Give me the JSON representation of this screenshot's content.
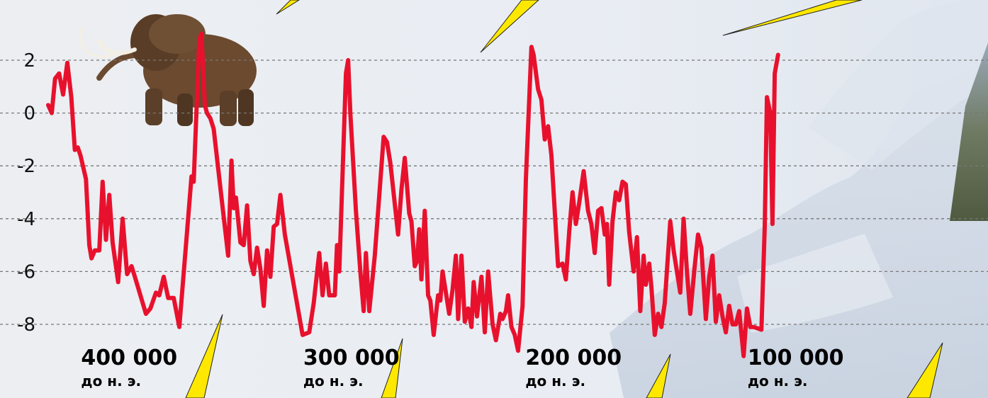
{
  "chart_data": {
    "type": "line",
    "title": "",
    "xlabel": "",
    "ylabel": "",
    "xlim": [
      418000,
      -5000
    ],
    "ylim": [
      -9.3,
      3.5
    ],
    "grid": true,
    "yticks": [
      2,
      0,
      -2,
      -4,
      -6,
      -8
    ],
    "ytick_labels": [
      "2",
      "0",
      "-2",
      "-4",
      "-6",
      "-8"
    ],
    "x_annotations": [
      {
        "value": 400000,
        "label": "400 000",
        "sub": "до н. э."
      },
      {
        "value": 300000,
        "label": "300 000",
        "sub": "до н. э."
      },
      {
        "value": 200000,
        "label": "200 000",
        "sub": "до н. э."
      },
      {
        "value": 100000,
        "label": "100 000",
        "sub": "до н. э."
      }
    ],
    "colors": {
      "line": "#e8112d",
      "grid": "#777777",
      "callout": "#ffe800"
    },
    "series": [
      {
        "name": "",
        "points": [
          [
            418000,
            0.3
          ],
          [
            416400,
            0.0
          ],
          [
            414900,
            1.3
          ],
          [
            413100,
            1.5
          ],
          [
            411300,
            0.7
          ],
          [
            409400,
            1.9
          ],
          [
            407600,
            0.6
          ],
          [
            406000,
            -1.4
          ],
          [
            404700,
            -1.3
          ],
          [
            403500,
            -1.6
          ],
          [
            401000,
            -2.5
          ],
          [
            399500,
            -5.0
          ],
          [
            398500,
            -5.5
          ],
          [
            397000,
            -5.2
          ],
          [
            395000,
            -5.2
          ],
          [
            393500,
            -2.6
          ],
          [
            392000,
            -4.8
          ],
          [
            390500,
            -3.1
          ],
          [
            389000,
            -4.9
          ],
          [
            386500,
            -6.4
          ],
          [
            384500,
            -4.0
          ],
          [
            382500,
            -6.1
          ],
          [
            380500,
            -5.8
          ],
          [
            379000,
            -6.2
          ],
          [
            374000,
            -7.6
          ],
          [
            372000,
            -7.4
          ],
          [
            369500,
            -6.8
          ],
          [
            368000,
            -6.9
          ],
          [
            366000,
            -6.2
          ],
          [
            364000,
            -7.0
          ],
          [
            361500,
            -7.0
          ],
          [
            359000,
            -8.1
          ],
          [
            356000,
            -5.0
          ],
          [
            353500,
            -2.4
          ],
          [
            352500,
            -2.6
          ],
          [
            350000,
            2.8
          ],
          [
            349000,
            3.0
          ],
          [
            347500,
            0.3
          ],
          [
            346500,
            0.0
          ],
          [
            345000,
            -0.2
          ],
          [
            343500,
            -0.6
          ],
          [
            340000,
            -3.2
          ],
          [
            337000,
            -5.4
          ],
          [
            335500,
            -1.8
          ],
          [
            334500,
            -3.6
          ],
          [
            333500,
            -3.2
          ],
          [
            331500,
            -4.9
          ],
          [
            330000,
            -5.0
          ],
          [
            328500,
            -3.5
          ],
          [
            327000,
            -5.6
          ],
          [
            325500,
            -6.1
          ],
          [
            324000,
            -5.1
          ],
          [
            322500,
            -5.9
          ],
          [
            321000,
            -7.3
          ],
          [
            319500,
            -5.2
          ],
          [
            318000,
            -6.2
          ],
          [
            316500,
            -4.3
          ],
          [
            315000,
            -4.2
          ],
          [
            313500,
            -3.1
          ],
          [
            311500,
            -4.6
          ],
          [
            303500,
            -8.4
          ],
          [
            300500,
            -8.3
          ],
          [
            298500,
            -7.2
          ],
          [
            296000,
            -5.3
          ],
          [
            294500,
            -6.9
          ],
          [
            293000,
            -5.7
          ],
          [
            291500,
            -6.9
          ],
          [
            289000,
            -6.9
          ],
          [
            288000,
            -5.0
          ],
          [
            287000,
            -6.0
          ],
          [
            284000,
            1.5
          ],
          [
            283000,
            2.0
          ],
          [
            282000,
            0.0
          ],
          [
            279500,
            -3.7
          ],
          [
            277500,
            -6.0
          ],
          [
            276000,
            -7.5
          ],
          [
            275000,
            -5.3
          ],
          [
            273500,
            -7.5
          ],
          [
            271000,
            -5.4
          ],
          [
            267000,
            -0.9
          ],
          [
            265500,
            -1.1
          ],
          [
            264000,
            -1.9
          ],
          [
            260500,
            -4.6
          ],
          [
            259000,
            -2.9
          ],
          [
            257500,
            -1.7
          ],
          [
            255500,
            -3.8
          ],
          [
            254500,
            -4.1
          ],
          [
            253000,
            -5.8
          ],
          [
            252000,
            -5.6
          ],
          [
            251000,
            -4.4
          ],
          [
            250000,
            -6.3
          ],
          [
            248500,
            -3.7
          ],
          [
            247000,
            -6.9
          ],
          [
            246000,
            -7.1
          ],
          [
            244500,
            -8.4
          ],
          [
            242500,
            -6.9
          ],
          [
            241500,
            -7.1
          ],
          [
            240500,
            -6.0
          ],
          [
            239000,
            -6.8
          ],
          [
            237500,
            -7.6
          ],
          [
            236000,
            -6.7
          ],
          [
            234500,
            -5.4
          ],
          [
            233500,
            -7.8
          ],
          [
            232000,
            -5.4
          ],
          [
            230500,
            -7.9
          ],
          [
            229000,
            -7.4
          ],
          [
            227500,
            -8.1
          ],
          [
            226500,
            -6.4
          ],
          [
            225000,
            -7.7
          ],
          [
            223000,
            -6.2
          ],
          [
            221500,
            -8.3
          ],
          [
            220000,
            -6.0
          ],
          [
            218000,
            -8.0
          ],
          [
            216500,
            -8.6
          ],
          [
            214500,
            -7.6
          ],
          [
            213500,
            -7.8
          ],
          [
            212000,
            -7.5
          ],
          [
            211000,
            -6.9
          ],
          [
            209500,
            -8.1
          ],
          [
            208000,
            -8.4
          ],
          [
            206500,
            -9.0
          ],
          [
            204500,
            -7.3
          ],
          [
            203000,
            -2.5
          ],
          [
            200500,
            2.5
          ],
          [
            199500,
            2.2
          ],
          [
            197500,
            0.9
          ],
          [
            196000,
            0.5
          ],
          [
            194500,
            -1.0
          ],
          [
            193000,
            -0.5
          ],
          [
            191500,
            -1.6
          ],
          [
            188500,
            -5.8
          ],
          [
            186500,
            -5.7
          ],
          [
            185000,
            -6.3
          ],
          [
            183500,
            -4.5
          ],
          [
            182000,
            -3.0
          ],
          [
            180500,
            -4.2
          ],
          [
            179000,
            -3.4
          ],
          [
            177000,
            -2.2
          ],
          [
            175000,
            -3.7
          ],
          [
            173500,
            -4.2
          ],
          [
            172000,
            -5.3
          ],
          [
            170500,
            -3.7
          ],
          [
            169000,
            -3.6
          ],
          [
            167500,
            -4.6
          ],
          [
            166500,
            -4.2
          ],
          [
            165500,
            -6.5
          ],
          [
            164000,
            -4.1
          ],
          [
            162500,
            -3.0
          ],
          [
            161000,
            -3.3
          ],
          [
            159500,
            -2.6
          ],
          [
            158000,
            -2.7
          ],
          [
            156500,
            -4.5
          ],
          [
            154500,
            -6.0
          ],
          [
            153000,
            -4.7
          ],
          [
            151500,
            -7.5
          ],
          [
            150000,
            -5.4
          ],
          [
            149000,
            -6.5
          ],
          [
            147500,
            -5.7
          ],
          [
            146500,
            -6.6
          ],
          [
            145000,
            -8.4
          ],
          [
            143500,
            -7.6
          ],
          [
            142000,
            -8.1
          ],
          [
            140500,
            -7.2
          ],
          [
            138000,
            -4.1
          ],
          [
            136500,
            -5.2
          ],
          [
            135000,
            -6.0
          ],
          [
            133500,
            -6.8
          ],
          [
            132000,
            -4.0
          ],
          [
            130500,
            -6.0
          ],
          [
            129000,
            -7.6
          ],
          [
            127000,
            -5.8
          ],
          [
            125500,
            -4.6
          ],
          [
            124000,
            -5.1
          ],
          [
            122000,
            -7.8
          ],
          [
            120500,
            -6.2
          ],
          [
            119000,
            -5.4
          ],
          [
            117500,
            -7.9
          ],
          [
            116000,
            -6.9
          ],
          [
            114500,
            -7.7
          ],
          [
            113000,
            -8.3
          ],
          [
            111500,
            -7.3
          ],
          [
            110000,
            -8.0
          ],
          [
            108500,
            -8.0
          ],
          [
            107000,
            -7.5
          ],
          [
            105000,
            -9.2
          ],
          [
            103500,
            -7.4
          ],
          [
            102000,
            -8.1
          ],
          [
            100500,
            -8.1
          ],
          [
            97000,
            -8.2
          ],
          [
            95500,
            -4.3
          ],
          [
            94500,
            0.6
          ],
          [
            93000,
            0.0
          ],
          [
            92000,
            -4.2
          ],
          [
            91000,
            1.5
          ],
          [
            89500,
            2.2
          ]
        ]
      }
    ]
  }
}
